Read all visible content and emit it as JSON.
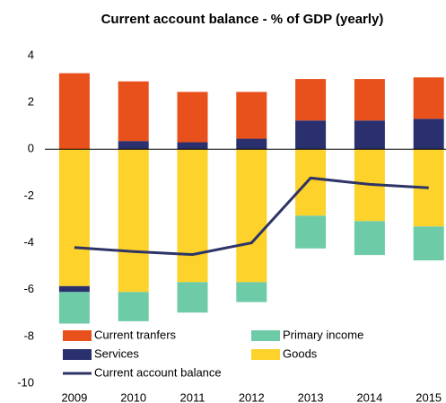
{
  "chart_data": {
    "type": "bar",
    "stacked": true,
    "title": "Current account balance - % of GDP (yearly)",
    "categories": [
      "2009",
      "2010",
      "2011",
      "2012",
      "2013",
      "2014",
      "2015"
    ],
    "series": [
      {
        "name": "Current tranfers",
        "color": "#e8501c",
        "values": [
          3.25,
          2.55,
          2.15,
          2.0,
          1.77,
          1.77,
          1.77
        ]
      },
      {
        "name": "Primary income",
        "color": "#6ecba8",
        "values": [
          -1.35,
          -1.25,
          -1.3,
          -0.85,
          -1.4,
          -1.45,
          -1.45
        ]
      },
      {
        "name": "Services",
        "color": "#2a2f6e",
        "values": [
          -0.25,
          0.35,
          0.3,
          0.45,
          1.23,
          1.23,
          1.3
        ]
      },
      {
        "name": "Goods",
        "color": "#fdd22a",
        "values": [
          -5.85,
          -6.1,
          -5.68,
          -5.68,
          -2.84,
          -3.07,
          -3.3
        ]
      },
      {
        "name": "Current account balance",
        "type": "line",
        "color": "#2e3466",
        "values": [
          -4.2,
          -4.37,
          -4.5,
          -4.0,
          -1.23,
          -1.5,
          -1.65
        ]
      }
    ],
    "ylim": [
      -10,
      4
    ],
    "yticks": [
      -10,
      -8,
      -6,
      -4,
      -2,
      0,
      2,
      4
    ],
    "legend": "lower left"
  }
}
